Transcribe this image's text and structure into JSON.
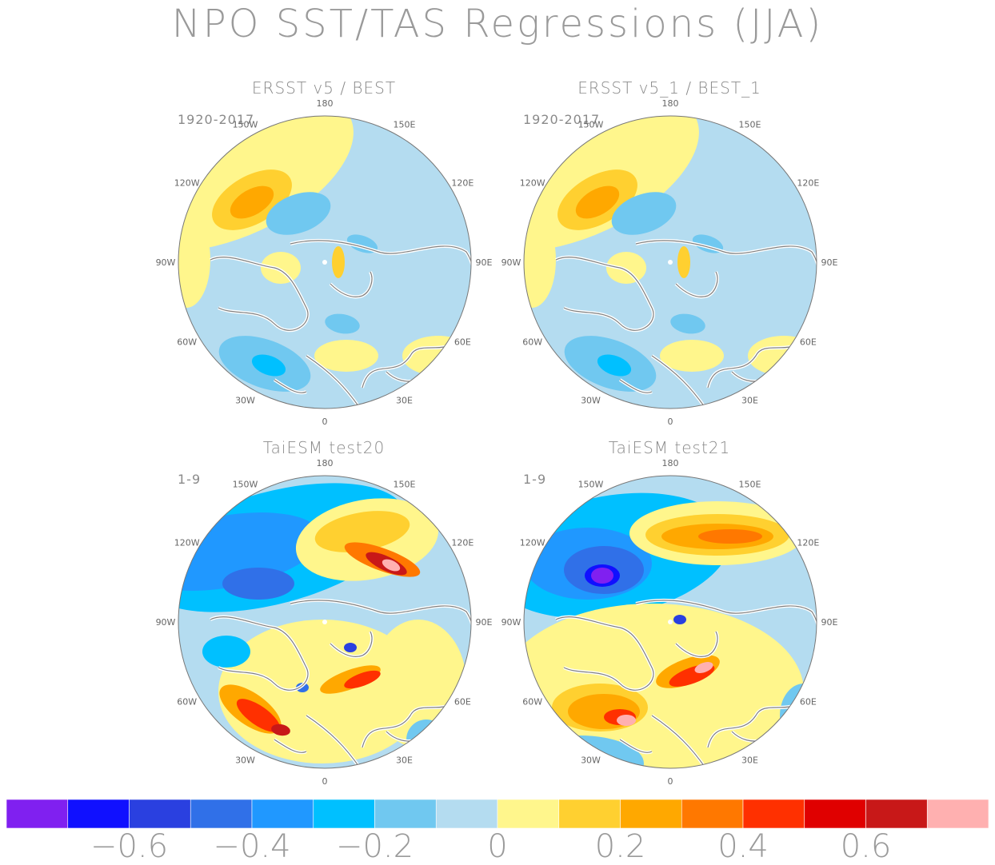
{
  "title": "NPO SST/TAS Regressions (JJA)",
  "panels": [
    {
      "title": "ERSST v5 / BEST",
      "period": "1920-2017",
      "pattern": "obs"
    },
    {
      "title": "ERSST v5_1 / BEST_1",
      "period": "1920-2017",
      "pattern": "obs"
    },
    {
      "title": "TaiESM test20",
      "period": "1-9",
      "pattern": "m20"
    },
    {
      "title": "TaiESM test21",
      "period": "1-9",
      "pattern": "m21"
    }
  ],
  "longitude_labels": [
    "180",
    "150E",
    "120E",
    "90E",
    "60E",
    "30E",
    "0",
    "30W",
    "60W",
    "90W",
    "120W",
    "150W"
  ],
  "colorbar": {
    "colors": [
      "#8020f0",
      "#1010ff",
      "#2a40e0",
      "#3070e8",
      "#2098ff",
      "#00c0ff",
      "#70c8f0",
      "#b4dcf0",
      "#fff68c",
      "#ffd030",
      "#ffa800",
      "#ff7800",
      "#ff3000",
      "#e00000",
      "#c81818",
      "#ffb0b0"
    ],
    "tick_labels": [
      "-0.6",
      "-0.4",
      "-0.2",
      "0",
      "0.2",
      "0.4",
      "0.6"
    ]
  }
}
